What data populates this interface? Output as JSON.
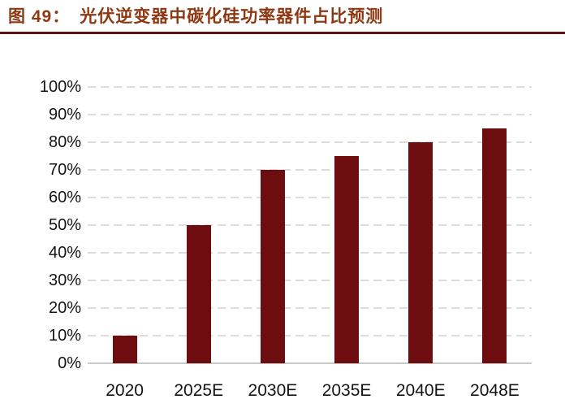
{
  "figure": {
    "label": "图 49：",
    "title": "光伏逆变器中碳化硅功率器件占比预测"
  },
  "chart_data": {
    "type": "bar",
    "title": "光伏逆变器中碳化硅功率器件占比预测",
    "categories": [
      "2020",
      "2025E",
      "2030E",
      "2035E",
      "2040E",
      "2048E"
    ],
    "values": [
      10,
      50,
      70,
      75,
      80,
      85
    ],
    "unit": "%",
    "xlabel": "",
    "ylabel": "",
    "ylim": [
      0,
      100
    ],
    "ytick_step": 10,
    "ytick_labels": [
      "0%",
      "10%",
      "20%",
      "30%",
      "40%",
      "50%",
      "60%",
      "70%",
      "80%",
      "90%",
      "100%"
    ],
    "grid": "horizontal-dashed",
    "legend": "none"
  },
  "colors": {
    "bar": "#6D0D0F",
    "title_text": "#8C3813",
    "title_rule": "#5E1212",
    "gridline": "#DCDCDC",
    "baseline": "#C9C9C9",
    "axis_text": "#141414",
    "background": "#FFFFFF"
  }
}
